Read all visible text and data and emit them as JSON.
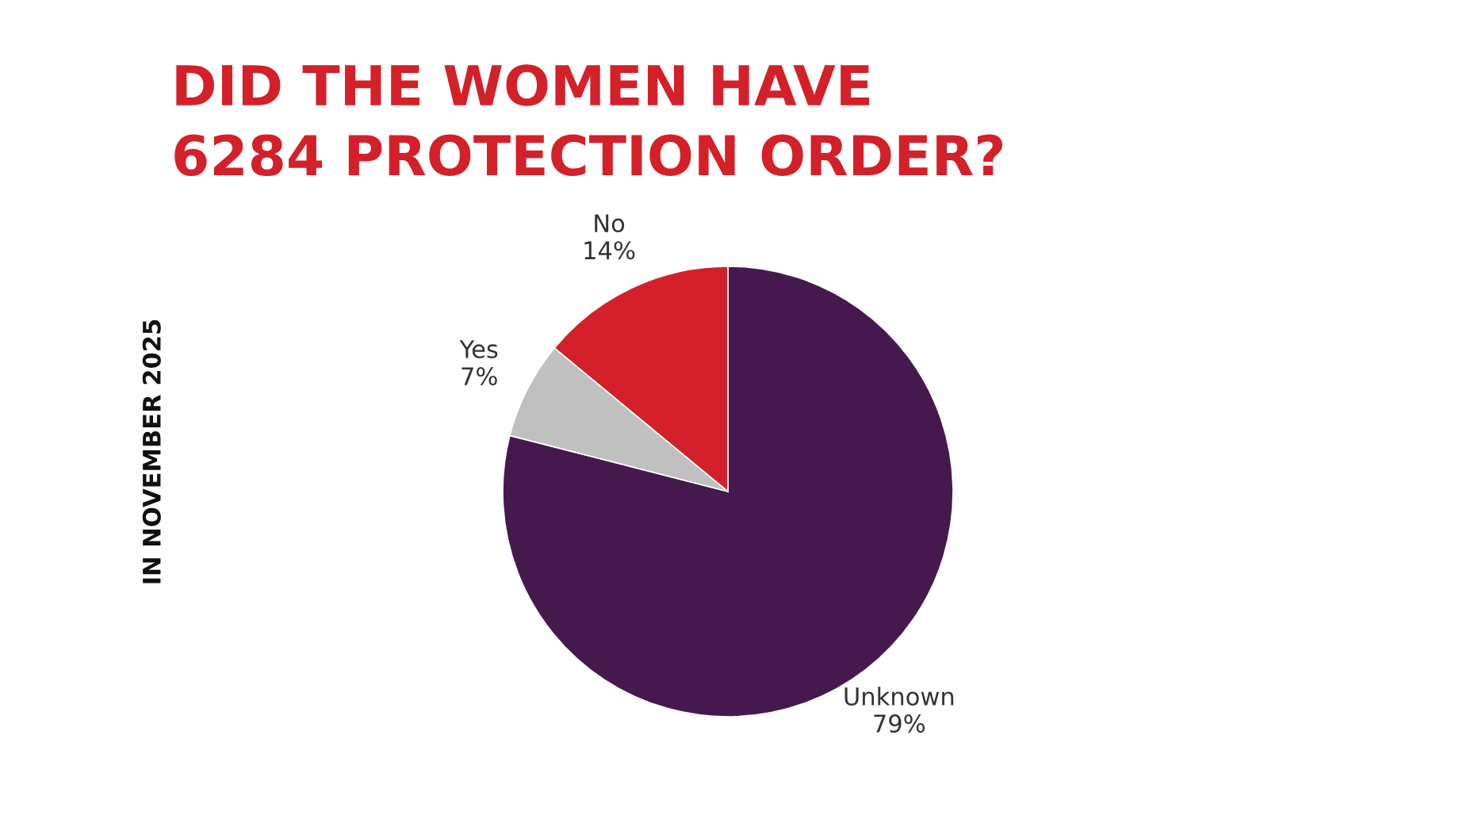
{
  "chart_data": {
    "type": "pie",
    "title": "DID THE WOMEN HAVE\n6284 PROTECTION ORDER?",
    "categories": [
      "Unknown",
      "Yes",
      "No"
    ],
    "values": [
      79,
      7,
      14
    ],
    "colors": [
      "#45194e",
      "#c0c0c0",
      "#d3202b"
    ],
    "value_labels": [
      "79%",
      "7%",
      "14%"
    ],
    "annotations": [
      "IN NOVEMBER 2025"
    ]
  }
}
